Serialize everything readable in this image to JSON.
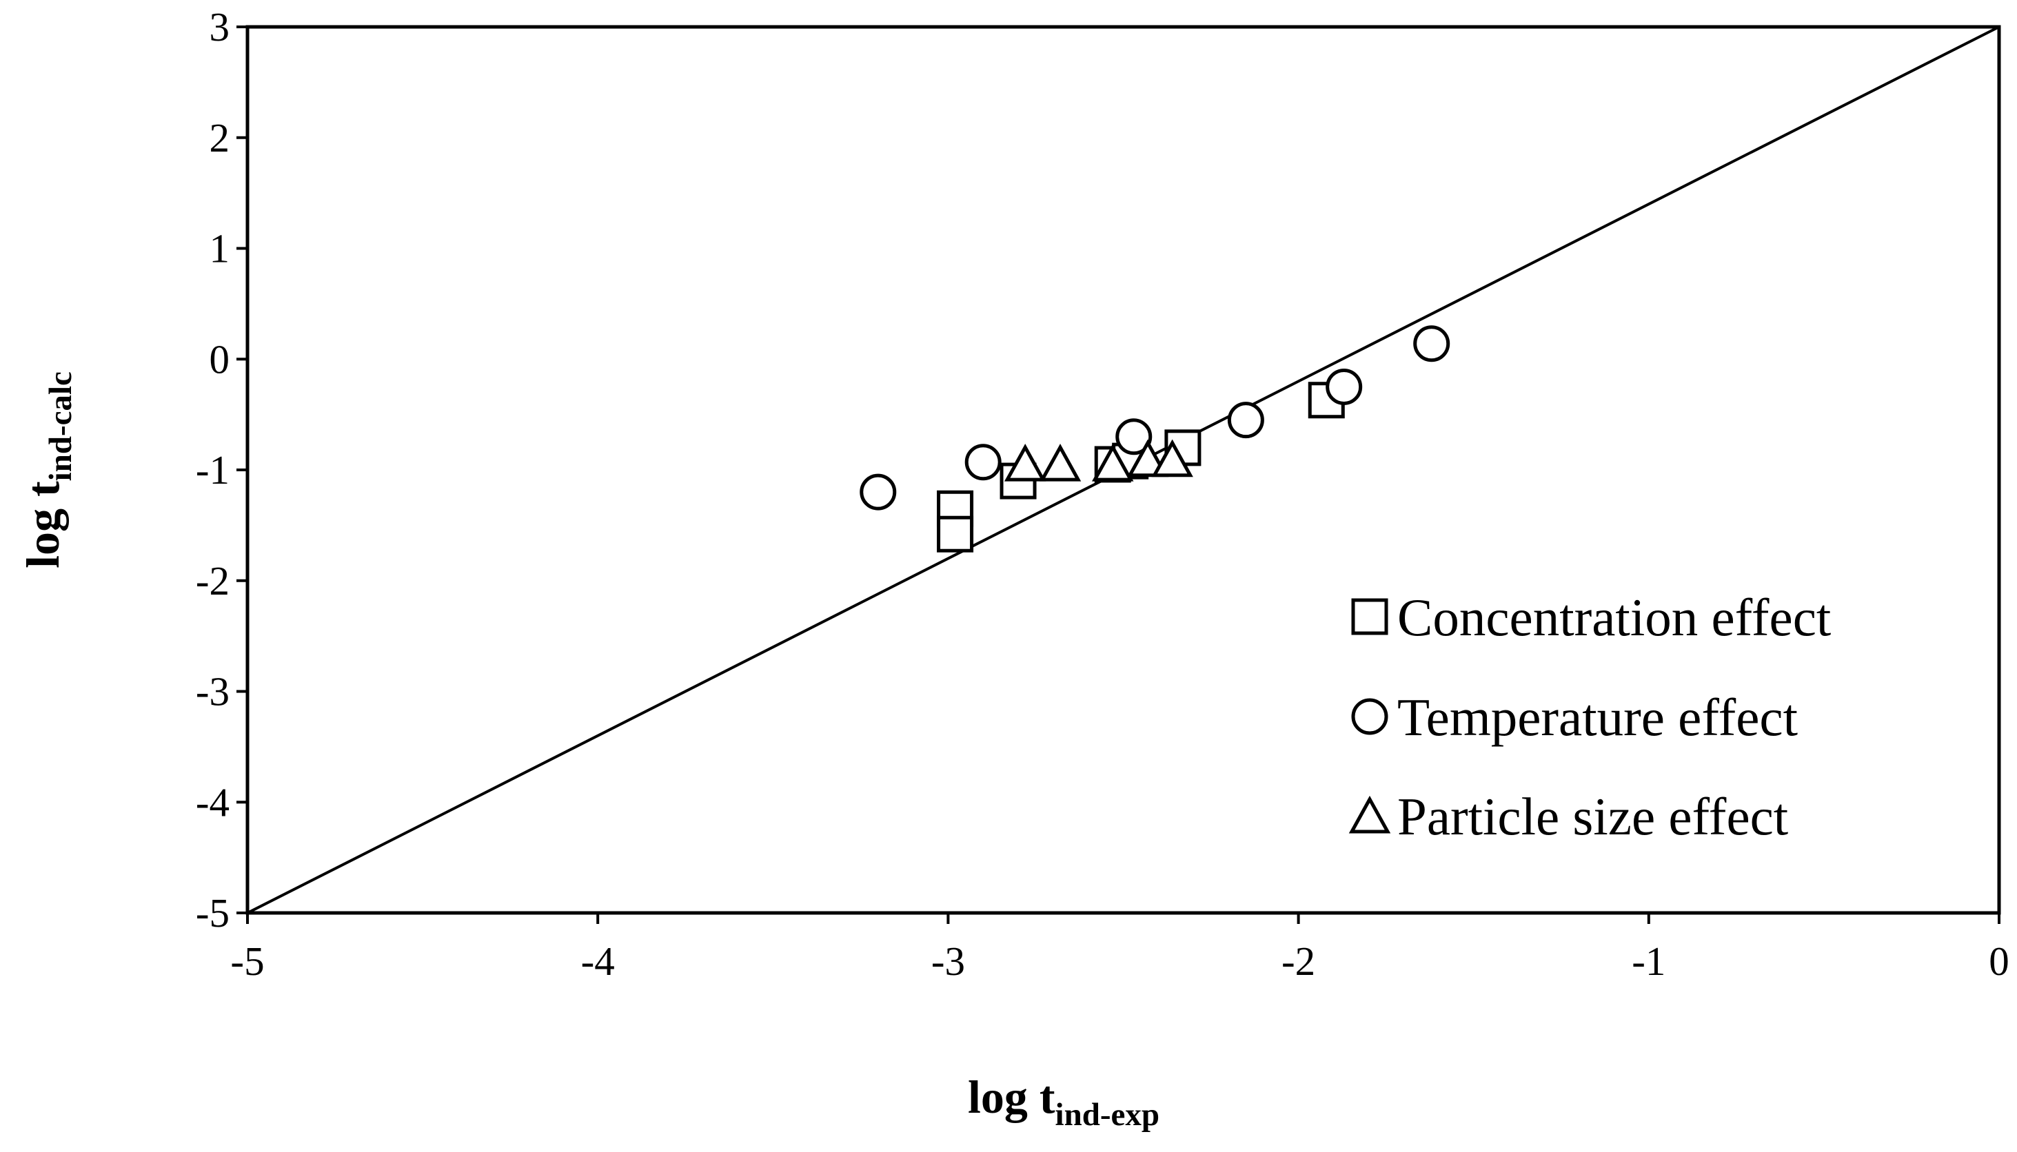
{
  "chart_data": {
    "type": "scatter",
    "title": "",
    "xlabel": {
      "main": "log t",
      "sub": "ind-exp"
    },
    "ylabel": {
      "main": "log t",
      "sub": "ind-calc"
    },
    "xlim": [
      -5,
      0
    ],
    "ylim": [
      -5,
      3
    ],
    "x_ticks": [
      -5,
      -4,
      -3,
      -2,
      -1,
      0
    ],
    "y_ticks": [
      -5,
      -4,
      -3,
      -2,
      -1,
      0,
      1,
      2,
      3
    ],
    "grid": false,
    "legend_position": "bottom-right",
    "reference_line": {
      "from": [
        -5,
        -5
      ],
      "to": [
        0,
        3
      ]
    },
    "series": [
      {
        "name": "Concentration effect",
        "marker": "square",
        "points": [
          {
            "x": -2.98,
            "y": -1.35
          },
          {
            "x": -2.98,
            "y": -1.58
          },
          {
            "x": -2.8,
            "y": -1.1
          },
          {
            "x": -2.53,
            "y": -0.95
          },
          {
            "x": -2.48,
            "y": -0.92
          },
          {
            "x": -2.33,
            "y": -0.8
          },
          {
            "x": -1.92,
            "y": -0.37
          }
        ]
      },
      {
        "name": "Temperature effect",
        "marker": "circle",
        "points": [
          {
            "x": -3.2,
            "y": -1.2
          },
          {
            "x": -2.9,
            "y": -0.93
          },
          {
            "x": -2.47,
            "y": -0.7
          },
          {
            "x": -2.15,
            "y": -0.55
          },
          {
            "x": -1.87,
            "y": -0.25
          },
          {
            "x": -1.62,
            "y": 0.14
          }
        ]
      },
      {
        "name": "Particle size effect",
        "marker": "triangle",
        "points": [
          {
            "x": -2.78,
            "y": -0.97
          },
          {
            "x": -2.68,
            "y": -0.97
          },
          {
            "x": -2.53,
            "y": -0.97
          },
          {
            "x": -2.43,
            "y": -0.93
          },
          {
            "x": -2.36,
            "y": -0.93
          }
        ]
      }
    ]
  }
}
